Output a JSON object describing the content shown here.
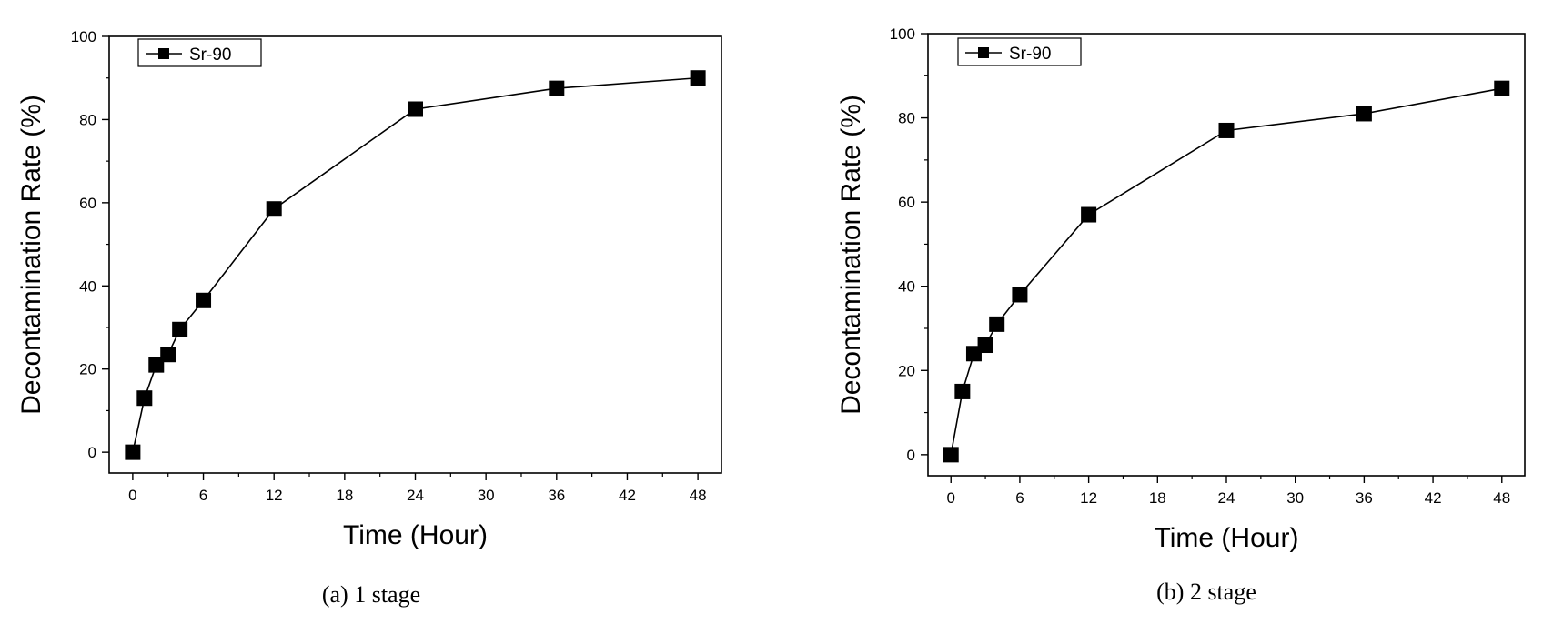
{
  "chart_data": [
    {
      "type": "line",
      "caption": "(a) 1 stage",
      "xlabel": "Time (Hour)",
      "ylabel": "Decontamination Rate (%)",
      "xlim": [
        -2,
        50
      ],
      "ylim": [
        -5,
        100
      ],
      "xticks": [
        0,
        6,
        12,
        18,
        24,
        30,
        36,
        42,
        48
      ],
      "yticks": [
        0,
        20,
        40,
        60,
        80,
        100
      ],
      "grid": false,
      "legend": "top-left",
      "series": [
        {
          "name": "Sr-90",
          "marker": "square",
          "color": "#000000",
          "x": [
            0,
            1,
            2,
            3,
            4,
            6,
            12,
            24,
            36,
            48
          ],
          "y": [
            0,
            13,
            21,
            23.5,
            29.5,
            36.5,
            58.5,
            82.5,
            87.5,
            90
          ]
        }
      ]
    },
    {
      "type": "line",
      "caption": "(b) 2 stage",
      "xlabel": "Time (Hour)",
      "ylabel": "Decontamination Rate (%)",
      "xlim": [
        -2,
        50
      ],
      "ylim": [
        -5,
        100
      ],
      "xticks": [
        0,
        6,
        12,
        18,
        24,
        30,
        36,
        42,
        48
      ],
      "yticks": [
        0,
        20,
        40,
        60,
        80,
        100
      ],
      "grid": false,
      "legend": "top-left",
      "series": [
        {
          "name": "Sr-90",
          "marker": "square",
          "color": "#000000",
          "x": [
            0,
            1,
            2,
            3,
            4,
            6,
            12,
            24,
            36,
            48
          ],
          "y": [
            0,
            15,
            24,
            26,
            31,
            38,
            57,
            77,
            81,
            87
          ]
        }
      ]
    }
  ]
}
